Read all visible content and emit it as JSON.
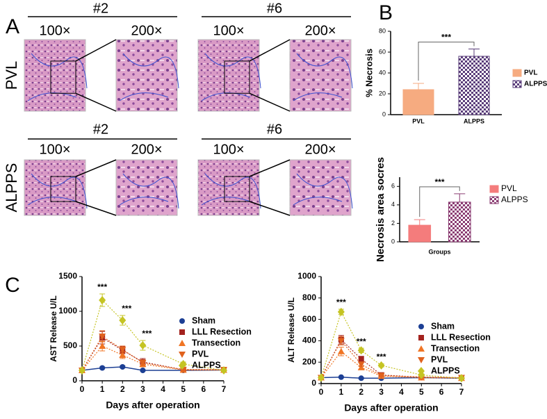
{
  "panel_labels": [
    "A",
    "B",
    "C"
  ],
  "panel_a": {
    "rows": [
      {
        "label": "PVL",
        "groups": [
          {
            "name": "#2",
            "mags": [
              "100×",
              "200×"
            ]
          },
          {
            "name": "#6",
            "mags": [
              "100×",
              "200×"
            ]
          }
        ]
      },
      {
        "label": "ALPPS",
        "groups": [
          {
            "name": "#2",
            "mags": [
              "100×",
              "200×"
            ]
          },
          {
            "name": "#6",
            "mags": [
              "100×",
              "200×"
            ]
          }
        ]
      }
    ]
  },
  "chart_data": [
    {
      "type": "bar",
      "y_label": "% Necrosis",
      "categories": [
        "PVL",
        "ALPPS"
      ],
      "values": [
        24,
        56
      ],
      "errors": [
        6,
        7
      ],
      "legend": [
        "PVL",
        "ALPPS"
      ],
      "colors": [
        "#f6ab80",
        "#5a3d7a"
      ],
      "fill_styles": [
        "solid",
        "checker"
      ],
      "ylim": [
        0,
        80
      ],
      "yticks": [
        0,
        20,
        40,
        60,
        80
      ],
      "annotation": "***"
    },
    {
      "type": "bar",
      "y_label": "Necrosis area socres",
      "x_label": "Groups",
      "categories": [
        null,
        null
      ],
      "values": [
        1.8,
        4.3
      ],
      "errors": [
        0.6,
        0.9
      ],
      "legend": [
        "PVL",
        "ALPPS"
      ],
      "colors": [
        "#f47c7c",
        "#8a3c72"
      ],
      "fill_styles": [
        "solid",
        "checker"
      ],
      "ylim": [
        0,
        7
      ],
      "yticks": [
        0,
        2,
        4,
        6
      ],
      "annotation": "***"
    },
    {
      "type": "line",
      "y_label": "AST Release U/L",
      "x_label": "Days after operation",
      "x": [
        0,
        1,
        2,
        3,
        5,
        7
      ],
      "xlim": [
        0,
        7
      ],
      "xticks": [
        0,
        1,
        2,
        3,
        4,
        5,
        6,
        7
      ],
      "ylim": [
        0,
        1500
      ],
      "yticks": [
        0,
        500,
        1000,
        1500
      ],
      "series": [
        {
          "name": "Sham",
          "color": "#1c3f94",
          "marker": "circle",
          "line_style": "solid",
          "values": [
            150,
            185,
            200,
            150,
            150,
            155
          ],
          "errors": [
            10,
            15,
            15,
            10,
            10,
            10
          ]
        },
        {
          "name": "LLL Resection",
          "color": "#a3221e",
          "marker": "square",
          "line_style": "dotted",
          "values": [
            150,
            620,
            440,
            270,
            160,
            160
          ],
          "errors": [
            10,
            90,
            50,
            50,
            20,
            15
          ]
        },
        {
          "name": "Transection",
          "color": "#f07524",
          "marker": "triangle",
          "line_style": "dotted",
          "values": [
            150,
            500,
            370,
            240,
            155,
            155
          ],
          "errors": [
            10,
            70,
            50,
            40,
            15,
            15
          ]
        },
        {
          "name": "PVL",
          "color": "#e0621e",
          "marker": "triangle-down",
          "line_style": "dotted",
          "values": [
            150,
            640,
            450,
            260,
            160,
            160
          ],
          "errors": [
            10,
            80,
            50,
            40,
            20,
            15
          ]
        },
        {
          "name": "ALPPS",
          "color": "#c5c423",
          "marker": "diamond",
          "line_style": "dotted",
          "values": [
            150,
            1160,
            870,
            510,
            240,
            150
          ],
          "errors": [
            10,
            90,
            70,
            70,
            30,
            15
          ]
        }
      ],
      "annotations": [
        {
          "label": "***",
          "x": 1
        },
        {
          "label": "***",
          "x": 2
        },
        {
          "label": "***",
          "x": 3
        }
      ]
    },
    {
      "type": "line",
      "y_label": "ALT Release U/L",
      "x_label": "Days after operation",
      "x": [
        0,
        1,
        2,
        3,
        5,
        7
      ],
      "xlim": [
        0,
        7
      ],
      "xticks": [
        0,
        1,
        2,
        3,
        4,
        5,
        6,
        7
      ],
      "ylim": [
        0,
        1000
      ],
      "yticks": [
        0,
        200,
        400,
        600,
        800,
        1000
      ],
      "series": [
        {
          "name": "Sham",
          "color": "#1c3f94",
          "marker": "circle",
          "line_style": "solid",
          "values": [
            55,
            60,
            50,
            50,
            55,
            50
          ],
          "errors": [
            5,
            5,
            5,
            5,
            5,
            5
          ]
        },
        {
          "name": "LLL Resection",
          "color": "#a3221e",
          "marker": "square",
          "line_style": "dotted",
          "values": [
            55,
            410,
            230,
            80,
            60,
            55
          ],
          "errors": [
            5,
            40,
            25,
            10,
            8,
            5
          ]
        },
        {
          "name": "Transection",
          "color": "#f07524",
          "marker": "triangle",
          "line_style": "dotted",
          "values": [
            55,
            300,
            150,
            70,
            55,
            50
          ],
          "errors": [
            5,
            40,
            20,
            10,
            5,
            5
          ]
        },
        {
          "name": "PVL",
          "color": "#e0621e",
          "marker": "triangle-down",
          "line_style": "dotted",
          "values": [
            55,
            400,
            180,
            75,
            60,
            55
          ],
          "errors": [
            5,
            40,
            20,
            10,
            5,
            5
          ]
        },
        {
          "name": "ALPPS",
          "color": "#c5c423",
          "marker": "diamond",
          "line_style": "dotted",
          "values": [
            55,
            670,
            310,
            170,
            80,
            50
          ],
          "errors": [
            5,
            25,
            20,
            15,
            10,
            5
          ]
        }
      ],
      "annotations": [
        {
          "label": "***",
          "x": 1
        },
        {
          "label": "***",
          "x": 2
        },
        {
          "label": "***",
          "x": 3
        }
      ]
    }
  ]
}
